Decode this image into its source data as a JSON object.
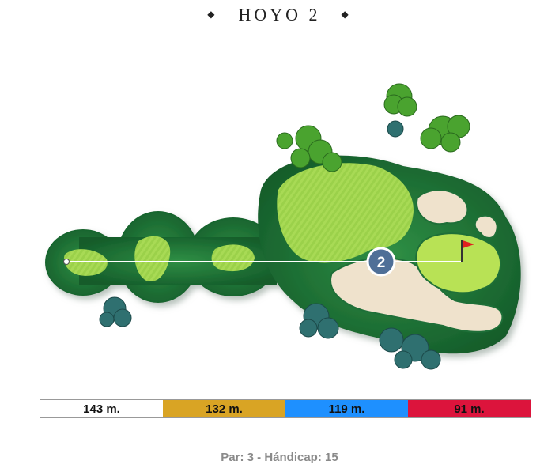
{
  "header": {
    "left_ornament": "◆",
    "title": "HOYO 2",
    "right_ornament": "◆"
  },
  "hole": {
    "number_badge": "2",
    "flag_color": "#e02020"
  },
  "tees": [
    {
      "label": "143 m.",
      "color": "#ffffff"
    },
    {
      "label": "132 m.",
      "color": "#d9a424"
    },
    {
      "label": "119 m.",
      "color": "#1e90ff"
    },
    {
      "label": "91 m.",
      "color": "#dc143c"
    }
  ],
  "footer": {
    "info": "Par: 3 - Hándicap: 15"
  },
  "colors": {
    "rough": "#1f7a3a",
    "fairway": "#9bd14a",
    "green": "#b8e255",
    "bunker": "#efe2cc",
    "trees_light": "#3f9a2a",
    "trees_dark": "#2c6a6a",
    "badge": "#4f6f97"
  }
}
